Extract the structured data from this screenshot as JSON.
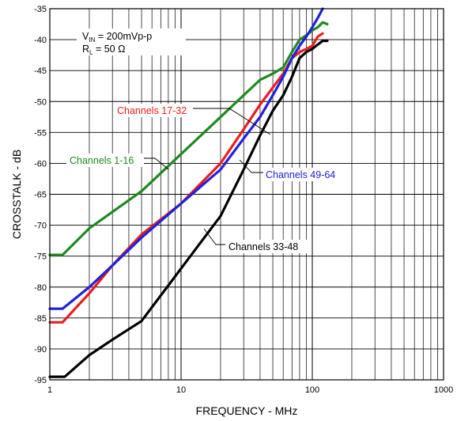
{
  "chart_data": {
    "type": "line",
    "xlabel": "FREQUENCY - MHz",
    "ylabel": "CROSSTALK - dB",
    "xscale": "log",
    "xlim": [
      1,
      1000
    ],
    "ylim": [
      -95,
      -35
    ],
    "x_ticks": [
      "1",
      "10",
      "100",
      "1000"
    ],
    "y_ticks": [
      "-35",
      "-40",
      "-45",
      "-50",
      "-55",
      "-60",
      "-65",
      "-70",
      "-75",
      "-80",
      "-85",
      "-90",
      "-95"
    ],
    "grid": true,
    "conditions": {
      "vin_prefix": "V",
      "vin_sub": "IN",
      "vin_rest": " = 200mVp-p",
      "rl_prefix": "R",
      "rl_sub": "L",
      "rl_rest": " = 50 Ω"
    },
    "series": [
      {
        "name": "Channels 1-16",
        "color": "#1e8a1e",
        "points": [
          [
            1,
            -74.8
          ],
          [
            1.25,
            -74.8
          ],
          [
            2,
            -70.5
          ],
          [
            5,
            -64.5
          ],
          [
            10,
            -58.5
          ],
          [
            20,
            -52.5
          ],
          [
            40,
            -46.5
          ],
          [
            50,
            -45.5
          ],
          [
            60,
            -44.5
          ],
          [
            70,
            -42
          ],
          [
            80,
            -40
          ],
          [
            90,
            -39.3
          ],
          [
            100,
            -38.5
          ],
          [
            110,
            -38
          ],
          [
            120,
            -37.2
          ],
          [
            130,
            -37.5
          ]
        ]
      },
      {
        "name": "Channels 17-32",
        "color": "#ee1c1c",
        "points": [
          [
            1,
            -85.7
          ],
          [
            1.25,
            -85.7
          ],
          [
            2,
            -81
          ],
          [
            3,
            -76.5
          ],
          [
            5,
            -71.5
          ],
          [
            10,
            -66.5
          ],
          [
            20,
            -60
          ],
          [
            30,
            -54.5
          ],
          [
            40,
            -50.5
          ],
          [
            60,
            -45.5
          ],
          [
            70,
            -43
          ],
          [
            80,
            -42
          ],
          [
            90,
            -41.5
          ],
          [
            100,
            -41
          ],
          [
            110,
            -39.5
          ],
          [
            120,
            -39
          ]
        ]
      },
      {
        "name": "Channels 33-48",
        "color": "#000000",
        "points": [
          [
            1,
            -94.5
          ],
          [
            1.3,
            -94.5
          ],
          [
            2,
            -91
          ],
          [
            3,
            -88.5
          ],
          [
            5,
            -85.5
          ],
          [
            10,
            -77
          ],
          [
            20,
            -68.5
          ],
          [
            30,
            -61
          ],
          [
            40,
            -55.5
          ],
          [
            50,
            -51.5
          ],
          [
            60,
            -49
          ],
          [
            70,
            -46
          ],
          [
            80,
            -43
          ],
          [
            90,
            -42
          ],
          [
            100,
            -41.5
          ],
          [
            110,
            -40.8
          ],
          [
            120,
            -40.2
          ],
          [
            130,
            -40.2
          ]
        ]
      },
      {
        "name": "Channels 49-64",
        "color": "#2020dd",
        "points": [
          [
            1,
            -83.5
          ],
          [
            1.25,
            -83.5
          ],
          [
            2,
            -80
          ],
          [
            3,
            -76.5
          ],
          [
            5,
            -72
          ],
          [
            10,
            -66.5
          ],
          [
            20,
            -61
          ],
          [
            30,
            -56
          ],
          [
            40,
            -52.5
          ],
          [
            50,
            -49
          ],
          [
            60,
            -46
          ],
          [
            70,
            -43
          ],
          [
            80,
            -41
          ],
          [
            90,
            -39.5
          ],
          [
            100,
            -38
          ],
          [
            110,
            -36.5
          ],
          [
            120,
            -35
          ]
        ]
      }
    ],
    "annotations": [
      {
        "text": "Channels 17-32",
        "color": "#ee1c1c"
      },
      {
        "text": "Channels 1-16",
        "color": "#1e8a1e"
      },
      {
        "text": "Channels 49-64",
        "color": "#2020dd"
      },
      {
        "text": "Channels 33-48",
        "color": "#000000"
      }
    ]
  }
}
